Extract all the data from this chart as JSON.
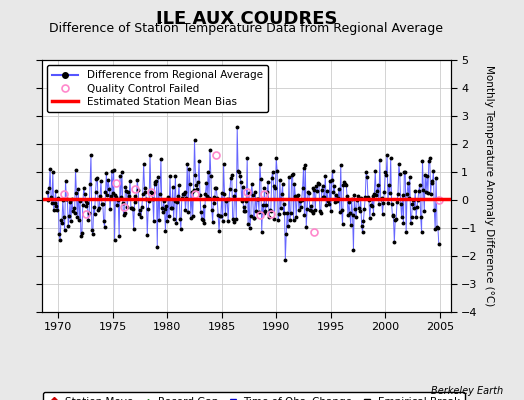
{
  "title": "ILE AUX COUDRES",
  "subtitle": "Difference of Station Temperature Data from Regional Average",
  "ylabel": "Monthly Temperature Anomaly Difference (°C)",
  "xlim": [
    1968.5,
    2006.0
  ],
  "ylim": [
    -4,
    5
  ],
  "yticks": [
    -4,
    -3,
    -2,
    -1,
    0,
    1,
    2,
    3,
    4,
    5
  ],
  "xticks": [
    1970,
    1975,
    1980,
    1985,
    1990,
    1995,
    2000,
    2005
  ],
  "bias_value": 0.02,
  "bg_color": "#e8e8e8",
  "plot_bg_color": "#ffffff",
  "grid_color": "#cccccc",
  "line_color": "#5555ff",
  "bias_color": "#ff0000",
  "marker_color": "#000000",
  "qc_color": "#ff88cc",
  "title_fontsize": 13,
  "subtitle_fontsize": 9,
  "tick_fontsize": 8,
  "seed": 42,
  "n_points": 432,
  "start_year": 1969.0,
  "end_year": 2005.0
}
